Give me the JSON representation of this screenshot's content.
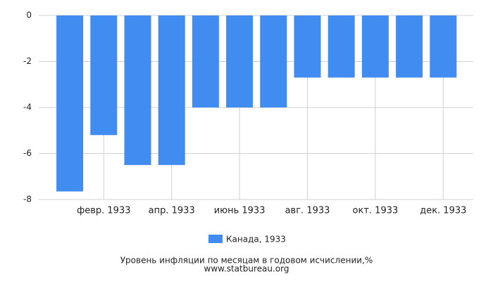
{
  "chart_data": {
    "type": "bar",
    "title": "Уровень инфляции по месяцам в годовом исчислении,%",
    "source": "www.statbureau.org",
    "categories": [
      null,
      "февр. 1933",
      null,
      "апр. 1933",
      null,
      "июнь 1933",
      null,
      "авг. 1933",
      null,
      "окт. 1933",
      null,
      "дек. 1933"
    ],
    "series": [
      {
        "name": "Канада, 1933",
        "color": "#418cf0",
        "values": [
          -7.65,
          -5.2,
          -6.5,
          -6.5,
          -4.0,
          -4.0,
          -4.0,
          -2.7,
          -2.7,
          -2.7,
          -2.7,
          -2.7
        ]
      }
    ],
    "ylim": [
      -8,
      0
    ],
    "yticks": [
      0,
      -2,
      -4,
      -6,
      -8
    ],
    "grid": true
  }
}
